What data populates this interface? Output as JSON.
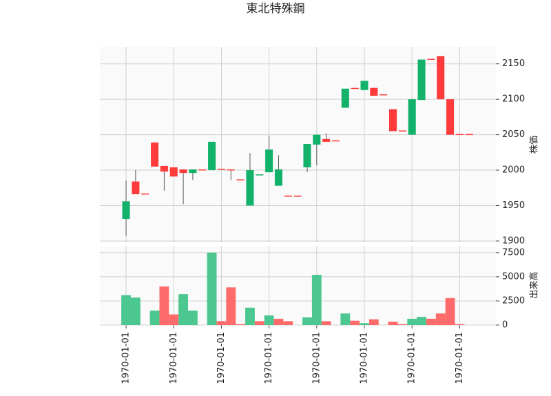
{
  "chart_data": {
    "type": "candlestick",
    "title": "東北特殊鋼",
    "ylabel": "株価",
    "volume_label": "出来高",
    "xlim": [
      -2.75,
      38.8
    ],
    "xticks": [
      {
        "value": 0,
        "label": "1970-01-01"
      },
      {
        "value": 5,
        "label": "1970-01-01"
      },
      {
        "value": 10,
        "label": "1970-01-01"
      },
      {
        "value": 15,
        "label": "1970-01-01"
      },
      {
        "value": 20,
        "label": "1970-01-01"
      },
      {
        "value": 25,
        "label": "1970-01-01"
      },
      {
        "value": 30,
        "label": "1970-01-01"
      },
      {
        "value": 35,
        "label": "1970-01-01"
      }
    ],
    "ylim": [
      1898,
      2174
    ],
    "yticks": [
      1900,
      1950,
      2000,
      2050,
      2100,
      2150
    ],
    "volume_ylim": [
      0,
      8200
    ],
    "volume_yticks": [
      0,
      2500,
      5000,
      7500
    ],
    "up_color": "#13b26b",
    "down_color": "#ff3b3b",
    "grid": true,
    "open": [
      1931,
      1984,
      1967,
      2039,
      2006,
      2004,
      2001,
      1996,
      2001,
      2000,
      2002,
      2001,
      1987,
      1950,
      1993,
      1997,
      1978,
      1964,
      1964,
      2004,
      2036,
      2044,
      2042,
      2088,
      2116,
      2113,
      2116,
      2107,
      2086,
      2056,
      2050,
      2099,
      2157,
      2161,
      2100,
      2051,
      2051
    ],
    "high": [
      1985,
      2000,
      1967,
      2039,
      2006,
      2004,
      2001,
      2001,
      2001,
      2040,
      2002,
      2001,
      1987,
      2024,
      1994,
      2049,
      2021,
      1964,
      1964,
      2037,
      2050,
      2052,
      2042,
      2115,
      2116,
      2126,
      2116,
      2107,
      2086,
      2056,
      2100,
      2156,
      2157,
      2161,
      2100,
      2051,
      2051
    ],
    "low": [
      1907,
      1966,
      1966,
      2005,
      1971,
      1991,
      1952,
      1986,
      2000,
      2000,
      2001,
      1986,
      1986,
      1950,
      1993,
      1997,
      1978,
      1963,
      1963,
      1997,
      2007,
      2040,
      2041,
      2088,
      2115,
      2113,
      2105,
      2106,
      2055,
      2055,
      2050,
      2099,
      2156,
      2100,
      2050,
      2050,
      2050
    ],
    "close": [
      1956,
      1966,
      1966,
      2005,
      1998,
      1991,
      1996,
      2001,
      2000,
      2040,
      2001,
      2000,
      1986,
      2000,
      1994,
      2029,
      2001,
      1963,
      1963,
      2037,
      2050,
      2040,
      2041,
      2115,
      2115,
      2126,
      2105,
      2106,
      2055,
      2055,
      2100,
      2156,
      2156,
      2100,
      2050,
      2050,
      2050
    ],
    "volume": [
      3100,
      2850,
      0,
      1500,
      4000,
      1100,
      3200,
      1500,
      0,
      7500,
      400,
      3900,
      100,
      1800,
      400,
      1000,
      650,
      400,
      0,
      800,
      5200,
      400,
      0,
      1200,
      450,
      200,
      600,
      0,
      350,
      100,
      650,
      850,
      650,
      1200,
      2800,
      100,
      0
    ],
    "volume_colors": [
      "#4cc790",
      "#4cc790",
      "#4cc790",
      "#4cc790",
      "#ff6b6b",
      "#ff6b6b",
      "#4cc790",
      "#4cc790",
      "#ff6b6b",
      "#4cc790",
      "#ff6b6b",
      "#ff6b6b",
      "#ff6b6b",
      "#4cc790",
      "#ff6b6b",
      "#4cc790",
      "#ff6b6b",
      "#ff6b6b",
      "#ff6b6b",
      "#4cc790",
      "#4cc790",
      "#ff6b6b",
      "#ff6b6b",
      "#4cc790",
      "#ff6b6b",
      "#4cc790",
      "#ff6b6b",
      "#ff6b6b",
      "#ff6b6b",
      "#ff6b6b",
      "#4cc790",
      "#4cc790",
      "#ff6b6b",
      "#ff6b6b",
      "#ff6b6b",
      "#ff6b6b",
      "#ff6b6b"
    ]
  }
}
